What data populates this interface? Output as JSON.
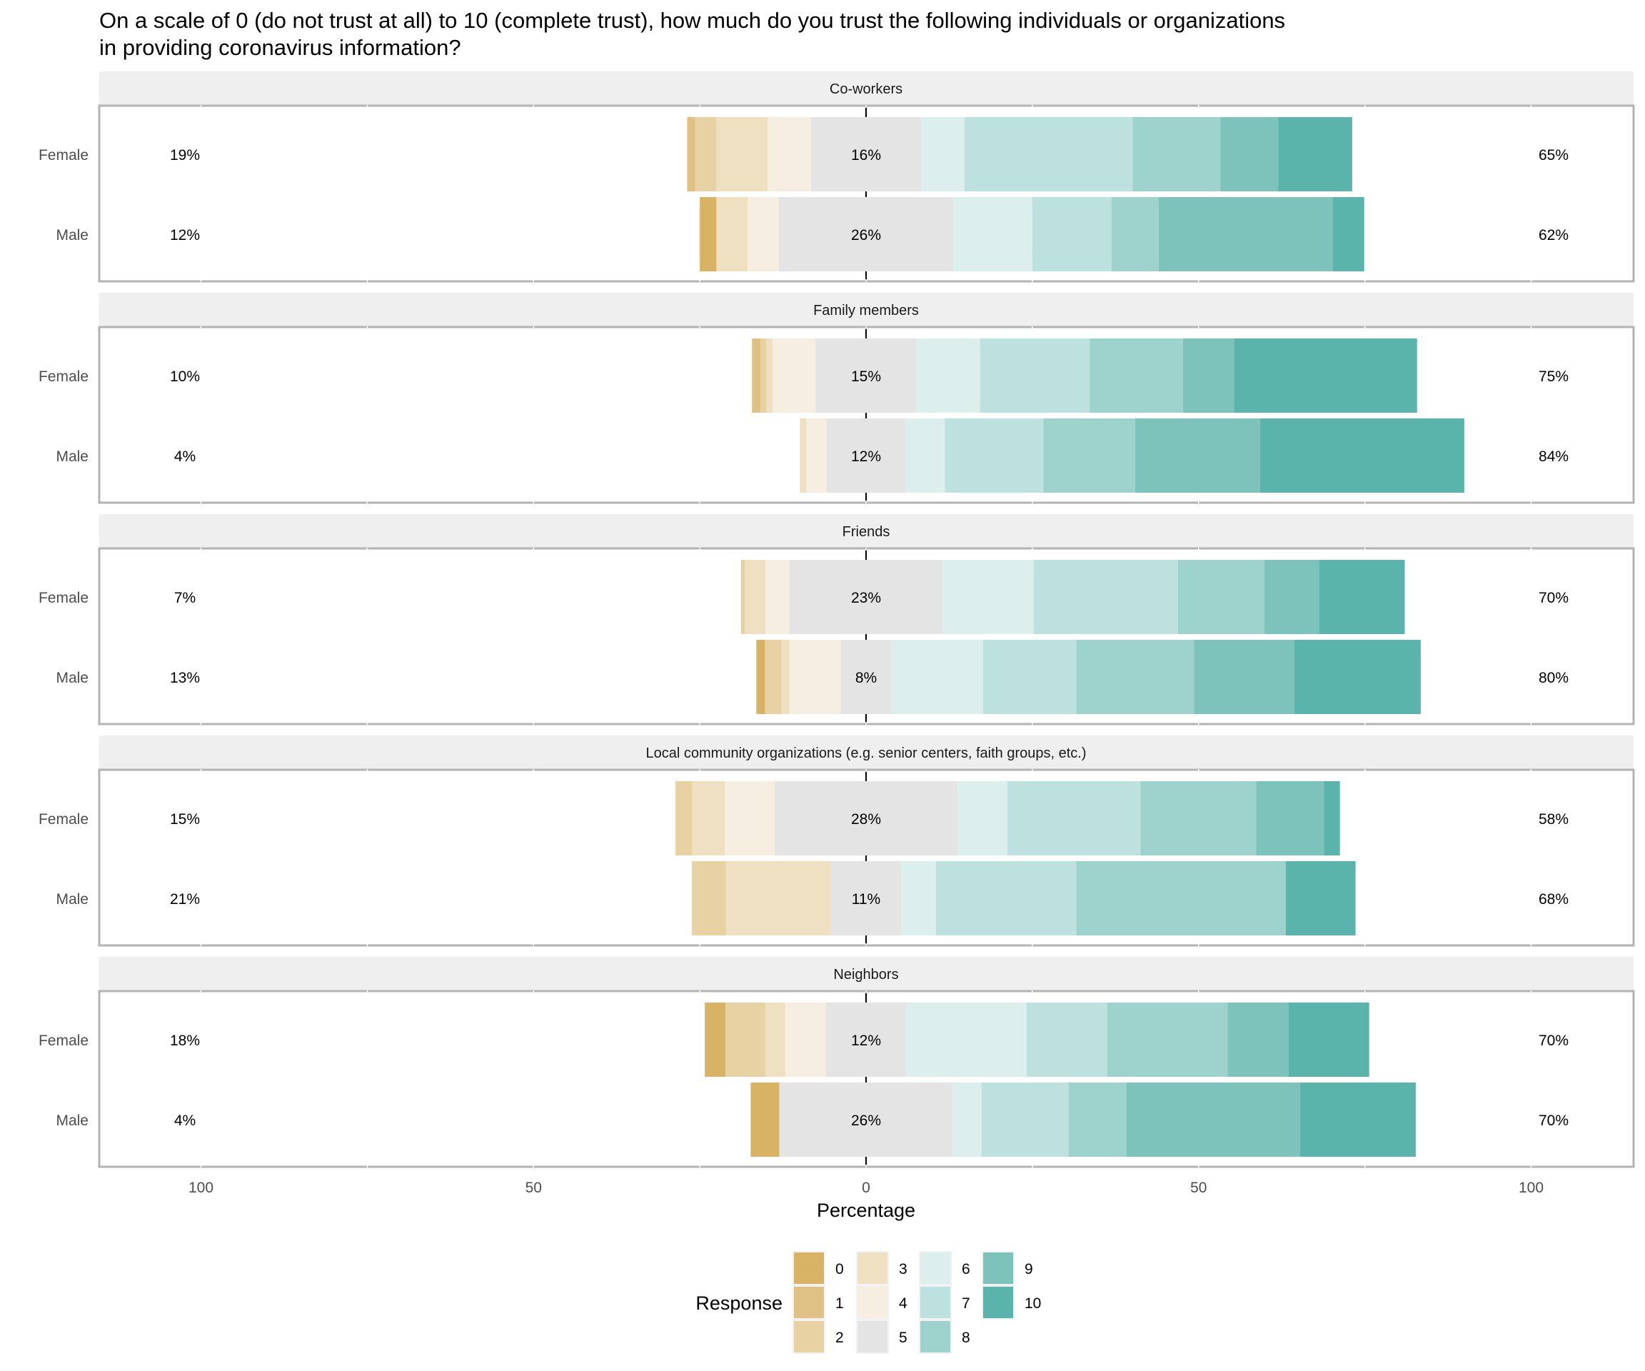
{
  "title_lines": [
    "On a scale of 0 (do not trust at all) to 10 (complete trust), how much do you trust the following individuals or organizations",
    "in providing coronavirus information?"
  ],
  "chart_data": {
    "type": "bar",
    "orientation": "horizontal",
    "stacked": "diverging",
    "title": "On a scale of 0 (do not trust at all) to 10 (complete trust), how much do you trust the following individuals or organizations in providing coronavirus information?",
    "xlabel": "Percentage",
    "ylabel": "",
    "xlim": [
      -115,
      115
    ],
    "x_ticks": [
      -100,
      -50,
      0,
      50,
      100
    ],
    "x_tick_labels": [
      "100",
      "50",
      "0",
      "50",
      "100"
    ],
    "x_minor_ticks": [
      -75,
      -25,
      25,
      75
    ],
    "grid": false,
    "legend": {
      "title": "Response",
      "position": "bottom",
      "entries": [
        "0",
        "1",
        "2",
        "3",
        "4",
        "5",
        "6",
        "7",
        "8",
        "9",
        "10"
      ],
      "colors": [
        "#d8b365",
        "#dfc185",
        "#e8d1a3",
        "#efe0c2",
        "#f6eee0",
        "#e4e4e4",
        "#dcefed",
        "#bde1de",
        "#9dd2cd",
        "#7dc3bc",
        "#5ab4ab"
      ]
    },
    "responses": [
      "0",
      "1",
      "2",
      "3",
      "4",
      "5",
      "6",
      "7",
      "8",
      "9",
      "10"
    ],
    "panels": [
      {
        "name": "Co-workers",
        "rows": [
          {
            "category": "Female",
            "values": [
              0,
              1.2,
              3.2,
              7.7,
              6.5,
              16.6,
              6.5,
              25.3,
              13.2,
              8.7,
              11.1
            ],
            "low_label": "19%",
            "neutral_label": "16%",
            "high_label": "65%"
          },
          {
            "category": "Male",
            "values": [
              2.5,
              0,
              0,
              4.7,
              4.7,
              26.2,
              11.9,
              11.9,
              7.1,
              26.2,
              4.7
            ],
            "low_label": "12%",
            "neutral_label": "26%",
            "high_label": "62%"
          }
        ]
      },
      {
        "name": "Family members",
        "rows": [
          {
            "category": "Female",
            "values": [
              0,
              1.3,
              0.9,
              0.9,
              6.4,
              15.3,
              9.5,
              16.5,
              14.0,
              7.7,
              27.5
            ],
            "low_label": "10%",
            "neutral_label": "15%",
            "high_label": "75%"
          },
          {
            "category": "Male",
            "values": [
              0,
              0,
              0,
              1.0,
              3.0,
              11.9,
              5.9,
              14.8,
              13.8,
              18.8,
              30.7
            ],
            "low_label": "4%",
            "neutral_label": "12%",
            "high_label": "84%"
          }
        ]
      },
      {
        "name": "Friends",
        "rows": [
          {
            "category": "Female",
            "values": [
              0,
              0,
              0.6,
              3.1,
              3.6,
              23.0,
              13.7,
              21.7,
              13.0,
              8.2,
              12.9
            ],
            "low_label": "7%",
            "neutral_label": "23%",
            "high_label": "70%"
          },
          {
            "category": "Male",
            "values": [
              1.3,
              0,
              2.5,
              1.2,
              7.7,
              7.6,
              13.8,
              14.0,
              17.7,
              15.1,
              19.0
            ],
            "low_label": "13%",
            "neutral_label": "8%",
            "high_label": "80%"
          }
        ]
      },
      {
        "name": "Local community organizations (e.g. senior centers, faith groups, etc.)",
        "rows": [
          {
            "category": "Female",
            "values": [
              0,
              0,
              2.5,
              4.9,
              7.5,
              27.5,
              7.5,
              20.0,
              17.4,
              10.2,
              2.4
            ],
            "low_label": "15%",
            "neutral_label": "28%",
            "high_label": "58%"
          },
          {
            "category": "Male",
            "values": [
              0,
              0,
              5.1,
              15.8,
              0,
              10.6,
              5.2,
              21.1,
              31.5,
              0,
              10.5
            ],
            "low_label": "21%",
            "neutral_label": "11%",
            "high_label": "68%"
          }
        ]
      },
      {
        "name": "Neighbors",
        "rows": [
          {
            "category": "Female",
            "values": [
              3.1,
              0,
              6.0,
              3.0,
              6.1,
              12.1,
              18.1,
              12.1,
              18.1,
              9.2,
              12.1
            ],
            "low_label": "18%",
            "neutral_label": "12%",
            "high_label": "70%"
          },
          {
            "category": "Male",
            "values": [
              4.3,
              0,
              0,
              0,
              0,
              26.1,
              4.3,
              13.1,
              8.7,
              26.1,
              17.4
            ],
            "low_label": "4%",
            "neutral_label": "26%",
            "high_label": "70%"
          }
        ]
      }
    ]
  }
}
